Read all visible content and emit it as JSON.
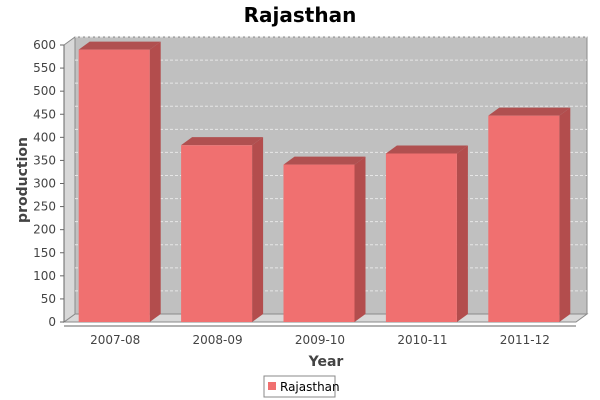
{
  "chart_data": {
    "type": "bar",
    "title": "Rajasthan",
    "xlabel": "Year",
    "ylabel": "production",
    "categories": [
      "2007-08",
      "2008-09",
      "2009-10",
      "2010-11",
      "2011-12"
    ],
    "series": [
      {
        "name": "Rajasthan",
        "values": [
          590,
          383,
          341,
          365,
          447
        ]
      }
    ],
    "ylim": [
      0,
      600
    ],
    "yticks": [
      0,
      50,
      100,
      150,
      200,
      250,
      300,
      350,
      400,
      450,
      500,
      550,
      600
    ],
    "grid": true,
    "legend_position": "bottom-center",
    "colors": {
      "bar_front": "#f07070",
      "bar_side": "#b34d4d",
      "bar_top": "#b05050",
      "plot_bg": "#c0c0c0",
      "grid": "#e6e6e6"
    }
  }
}
